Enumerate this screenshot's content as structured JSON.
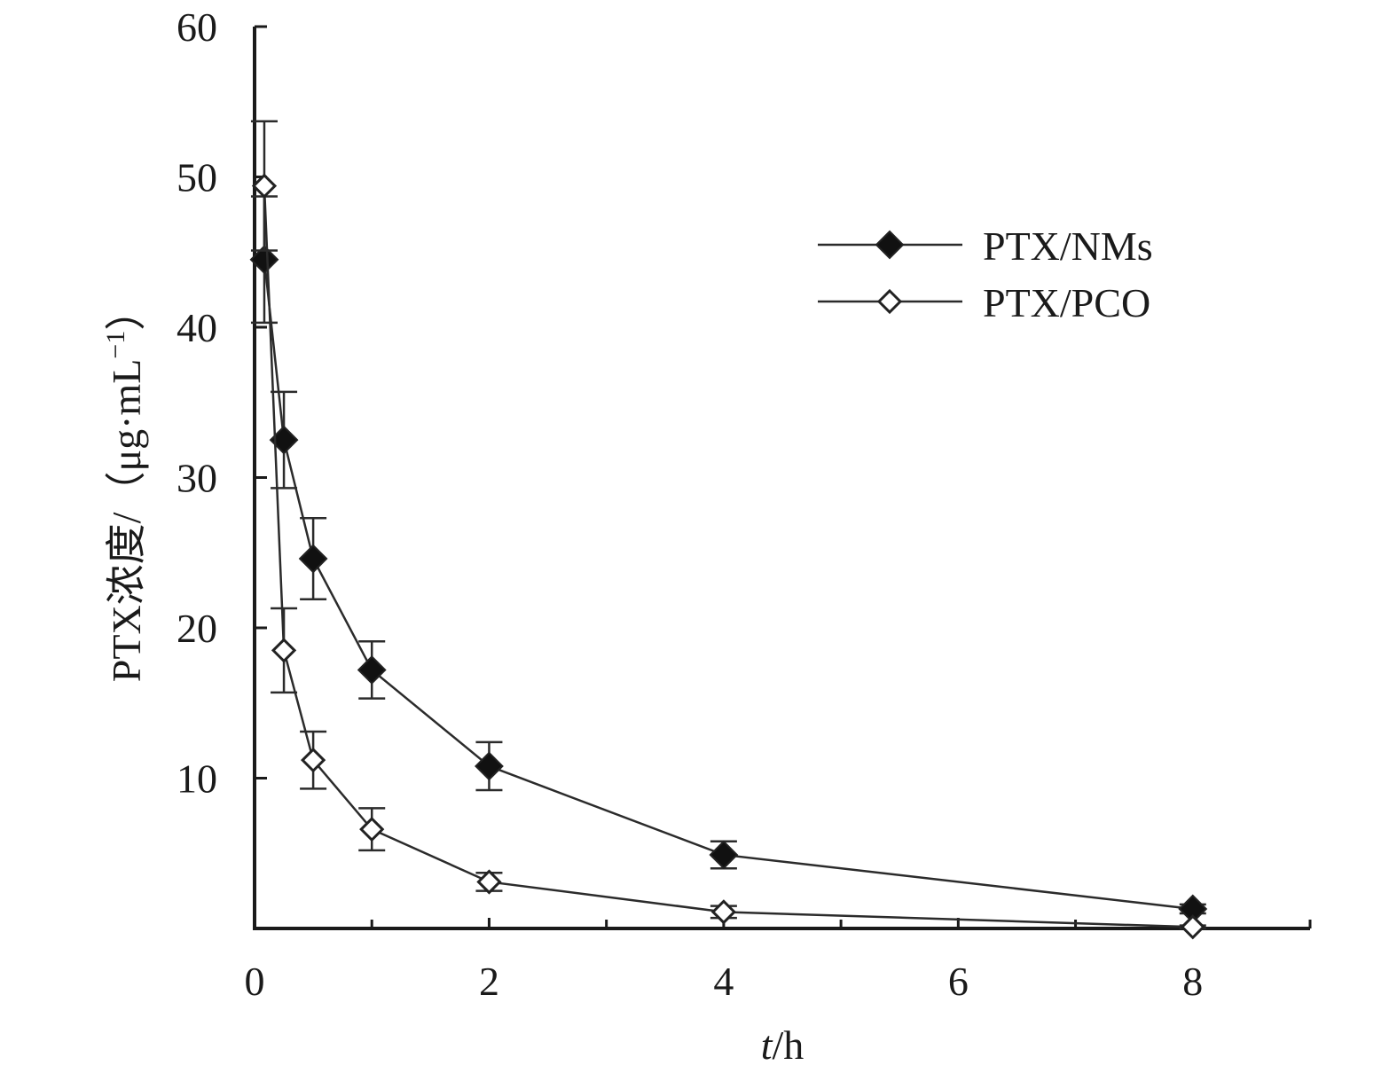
{
  "chart_data": {
    "type": "line",
    "xlabel_italic": "t",
    "xlabel_unit": "/h",
    "ylabel_main": "PTX浓度/（μg·mL",
    "ylabel_sup": "−1",
    "ylabel_close": "）",
    "xlim": [
      0,
      9
    ],
    "ylim": [
      0,
      60
    ],
    "x_ticks": [
      0,
      2,
      4,
      6,
      8
    ],
    "x_minor_ticks": [
      1,
      3,
      5,
      7,
      9
    ],
    "y_ticks": [
      10,
      20,
      30,
      40,
      50,
      60
    ],
    "grid": false,
    "legend_position": "top-right",
    "series": [
      {
        "name": "PTX/NMs",
        "marker": "filled-diamond",
        "x": [
          0.083,
          0.25,
          0.5,
          1,
          2,
          4,
          8
        ],
        "y": [
          44.5,
          32.5,
          24.6,
          17.2,
          10.8,
          4.9,
          1.3
        ],
        "err": [
          4.2,
          3.2,
          2.7,
          1.9,
          1.6,
          0.9,
          0.3
        ]
      },
      {
        "name": "PTX/PCO",
        "marker": "open-diamond",
        "x": [
          0.083,
          0.25,
          0.5,
          1,
          2,
          4,
          8
        ],
        "y": [
          49.4,
          18.5,
          11.2,
          6.6,
          3.1,
          1.1,
          0.1
        ],
        "err": [
          4.3,
          2.8,
          1.9,
          1.4,
          0.6,
          0.4,
          0.1
        ]
      }
    ]
  },
  "colors": {
    "line": "#2b2b2b",
    "axis": "#1a1a1a",
    "background": "#ffffff"
  }
}
